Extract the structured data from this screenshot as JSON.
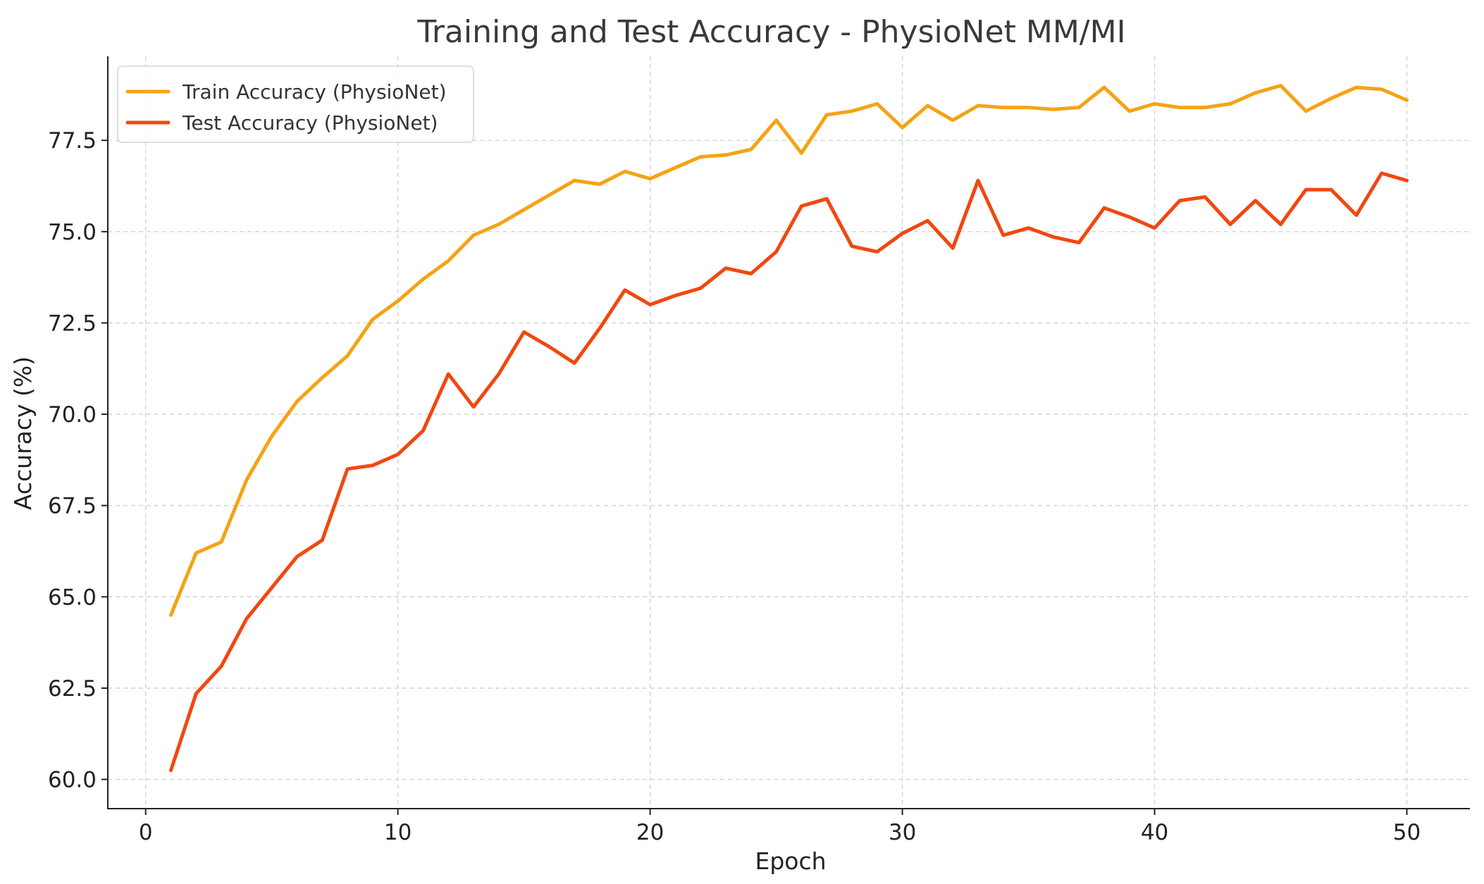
{
  "chart_data": {
    "type": "line",
    "title": "Training and Test Accuracy - PhysioNet MM/MI",
    "xlabel": "Epoch",
    "ylabel": "Accuracy (%)",
    "xlim": [
      -1.5,
      52.5
    ],
    "ylim": [
      59.2,
      79.8
    ],
    "xticks": [
      0,
      10,
      20,
      30,
      40,
      50
    ],
    "xtick_labels": [
      "0",
      "10",
      "20",
      "30",
      "40",
      "50"
    ],
    "yticks": [
      60.0,
      62.5,
      65.0,
      67.5,
      70.0,
      72.5,
      75.0,
      77.5
    ],
    "ytick_labels": [
      "60.0",
      "62.5",
      "65.0",
      "67.5",
      "70.0",
      "72.5",
      "75.0",
      "77.5"
    ],
    "grid": true,
    "legend_position": "top-left",
    "x": [
      1,
      2,
      3,
      4,
      5,
      6,
      7,
      8,
      9,
      10,
      11,
      12,
      13,
      14,
      15,
      16,
      17,
      18,
      19,
      20,
      21,
      22,
      23,
      24,
      25,
      26,
      27,
      28,
      29,
      30,
      31,
      32,
      33,
      34,
      35,
      36,
      37,
      38,
      39,
      40,
      41,
      42,
      43,
      44,
      45,
      46,
      47,
      48,
      49,
      50
    ],
    "series": [
      {
        "name": "Train Accuracy (PhysioNet)",
        "color": "#f5a314",
        "values": [
          64.5,
          66.2,
          66.5,
          68.2,
          69.4,
          70.35,
          71.0,
          71.6,
          72.6,
          73.1,
          73.7,
          74.2,
          74.9,
          75.2,
          75.6,
          76.0,
          76.4,
          76.3,
          76.65,
          76.45,
          76.75,
          77.05,
          77.1,
          77.25,
          78.05,
          77.15,
          78.2,
          78.3,
          78.5,
          77.85,
          78.45,
          78.05,
          78.45,
          78.4,
          78.4,
          78.35,
          78.4,
          78.95,
          78.3,
          78.5,
          78.4,
          78.4,
          78.5,
          78.8,
          79.0,
          78.3,
          78.65,
          78.95,
          78.9,
          78.6
        ]
      },
      {
        "name": "Test Accuracy (PhysioNet)",
        "color": "#f2470f",
        "values": [
          60.25,
          62.35,
          63.1,
          64.4,
          65.25,
          66.1,
          66.55,
          68.5,
          68.6,
          68.9,
          69.55,
          71.1,
          70.2,
          71.1,
          72.25,
          71.85,
          71.4,
          72.35,
          73.4,
          73.0,
          73.25,
          73.45,
          74.0,
          73.85,
          74.45,
          75.7,
          75.9,
          74.6,
          74.45,
          74.95,
          75.3,
          74.55,
          76.4,
          74.9,
          75.1,
          74.85,
          74.7,
          75.65,
          75.4,
          75.1,
          75.85,
          75.95,
          75.2,
          75.85,
          75.2,
          76.15,
          76.15,
          75.45,
          76.6,
          76.4
        ]
      }
    ]
  }
}
